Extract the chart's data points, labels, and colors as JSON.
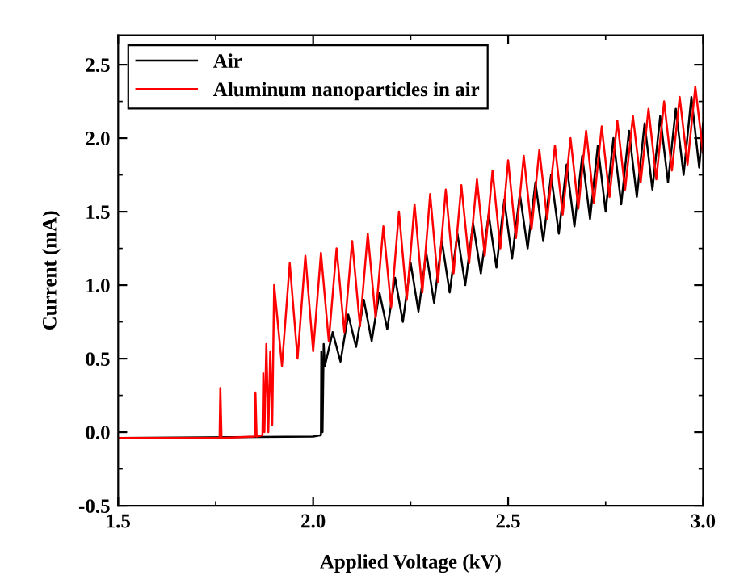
{
  "chart_data": {
    "type": "line",
    "xlabel": "Applied Voltage (kV)",
    "ylabel": "Current (mA)",
    "xlim": [
      1.5,
      3.0
    ],
    "ylim": [
      -0.5,
      2.7
    ],
    "xticks": [
      {
        "value": 1.5,
        "label": "1.5"
      },
      {
        "value": 2.0,
        "label": "2.0"
      },
      {
        "value": 2.5,
        "label": "2.5"
      },
      {
        "value": 3.0,
        "label": "3.0"
      }
    ],
    "yticks": [
      {
        "value": -0.5,
        "label": "-0.5"
      },
      {
        "value": 0.0,
        "label": "0.0"
      },
      {
        "value": 0.5,
        "label": "0.5"
      },
      {
        "value": 1.0,
        "label": "1.0"
      },
      {
        "value": 1.5,
        "label": "1.5"
      },
      {
        "value": 2.0,
        "label": "2.0"
      },
      {
        "value": 2.5,
        "label": "2.5"
      }
    ],
    "grid": false,
    "legend": "top left",
    "marker": "none",
    "line_style": "solid",
    "series": [
      {
        "name": "Air",
        "color": "#000000",
        "x": [
          1.5,
          2.0,
          2.02,
          2.021,
          2.024,
          2.027,
          2.03,
          2.05,
          2.07,
          2.09,
          2.11,
          2.13,
          2.15,
          2.17,
          2.19,
          2.21,
          2.23,
          2.25,
          2.27,
          2.29,
          2.31,
          2.33,
          2.35,
          2.37,
          2.39,
          2.41,
          2.43,
          2.45,
          2.47,
          2.49,
          2.51,
          2.53,
          2.55,
          2.57,
          2.59,
          2.61,
          2.63,
          2.65,
          2.67,
          2.69,
          2.71,
          2.73,
          2.75,
          2.77,
          2.79,
          2.81,
          2.83,
          2.85,
          2.87,
          2.89,
          2.91,
          2.93,
          2.95,
          2.97,
          2.99,
          3.0
        ],
        "values": [
          -0.04,
          -0.03,
          -0.02,
          0.55,
          0.0,
          0.6,
          0.45,
          0.68,
          0.48,
          0.8,
          0.58,
          0.9,
          0.62,
          0.95,
          0.7,
          1.05,
          0.75,
          1.15,
          0.82,
          1.22,
          0.88,
          1.3,
          0.95,
          1.35,
          1.0,
          1.42,
          1.08,
          1.48,
          1.12,
          1.58,
          1.18,
          1.62,
          1.25,
          1.7,
          1.3,
          1.75,
          1.35,
          1.82,
          1.4,
          1.88,
          1.45,
          1.95,
          1.5,
          2.0,
          1.55,
          2.05,
          1.6,
          2.1,
          1.65,
          2.15,
          1.7,
          2.2,
          1.75,
          2.28,
          1.8,
          2.1
        ]
      },
      {
        "name": "Aluminum nanoparticles in air",
        "color": "#ff0000",
        "x": [
          1.5,
          1.76,
          1.762,
          1.765,
          1.85,
          1.852,
          1.855,
          1.87,
          1.872,
          1.875,
          1.88,
          1.885,
          1.89,
          1.895,
          1.9,
          1.92,
          1.94,
          1.96,
          1.98,
          2.0,
          2.02,
          2.04,
          2.06,
          2.08,
          2.1,
          2.12,
          2.14,
          2.16,
          2.18,
          2.2,
          2.22,
          2.24,
          2.26,
          2.28,
          2.3,
          2.32,
          2.34,
          2.36,
          2.38,
          2.4,
          2.42,
          2.44,
          2.46,
          2.48,
          2.5,
          2.52,
          2.54,
          2.56,
          2.58,
          2.6,
          2.62,
          2.64,
          2.66,
          2.68,
          2.7,
          2.72,
          2.74,
          2.76,
          2.78,
          2.8,
          2.82,
          2.84,
          2.86,
          2.88,
          2.9,
          2.92,
          2.94,
          2.96,
          2.98,
          3.0
        ],
        "values": [
          -0.04,
          -0.04,
          0.3,
          -0.04,
          -0.03,
          0.27,
          -0.03,
          -0.02,
          0.4,
          0.0,
          0.6,
          0.0,
          0.55,
          0.05,
          1.0,
          0.45,
          1.15,
          0.5,
          1.2,
          0.55,
          1.22,
          0.62,
          1.25,
          0.68,
          1.3,
          0.72,
          1.35,
          0.78,
          1.4,
          0.85,
          1.5,
          0.9,
          1.55,
          0.95,
          1.62,
          1.02,
          1.65,
          1.08,
          1.68,
          1.15,
          1.72,
          1.2,
          1.78,
          1.25,
          1.85,
          1.32,
          1.88,
          1.38,
          1.92,
          1.45,
          1.95,
          1.48,
          2.0,
          1.52,
          2.05,
          1.56,
          2.08,
          1.6,
          2.12,
          1.65,
          2.15,
          1.7,
          2.2,
          1.72,
          2.25,
          1.78,
          2.28,
          1.82,
          2.35,
          1.9
        ]
      }
    ]
  }
}
